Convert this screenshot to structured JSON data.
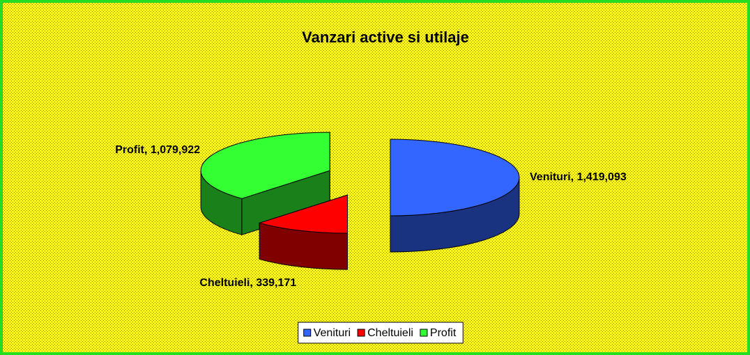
{
  "chart_data": {
    "type": "pie",
    "title": "Vanzari active si utilaje",
    "categories": [
      "Venituri",
      "Cheltuieli",
      "Profit"
    ],
    "values": [
      1419093,
      339171,
      1079922
    ],
    "value_labels": [
      "Venituri, 1,419,093",
      "Cheltuieli, 339,171",
      "Profit, 1,079,922"
    ],
    "colors": [
      "#3366ff",
      "#ff0000",
      "#33ff33"
    ],
    "legend": "bottom"
  }
}
